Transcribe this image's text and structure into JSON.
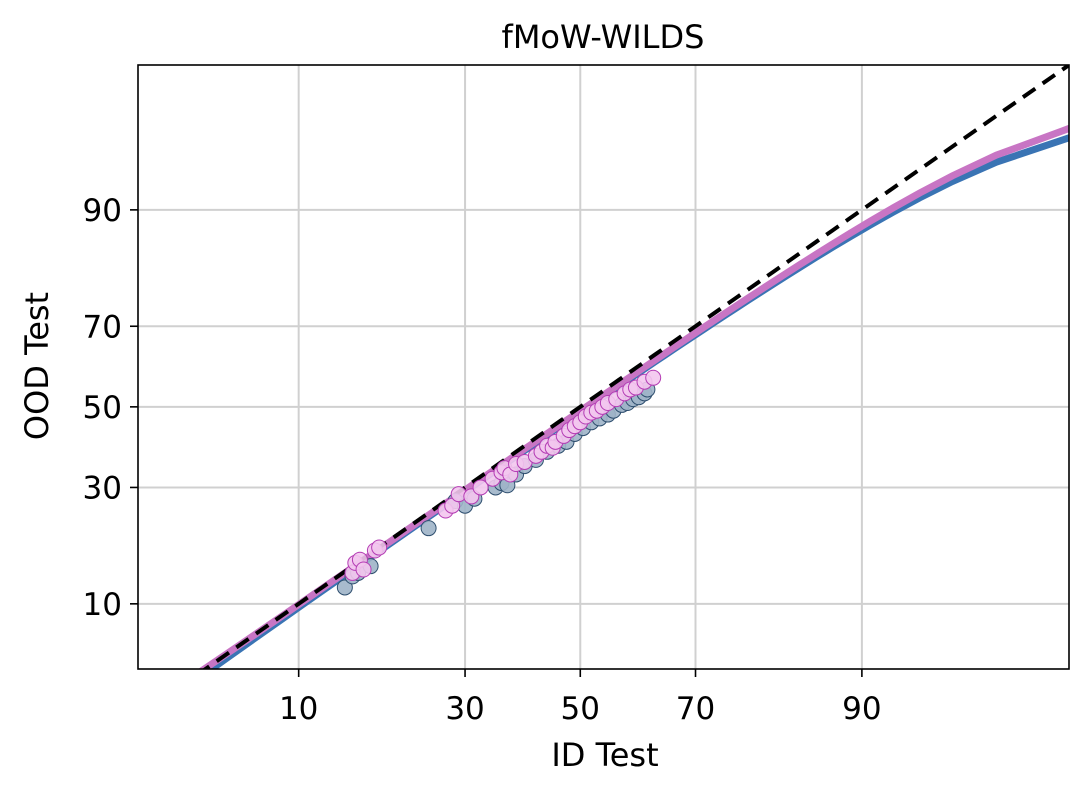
{
  "chart_data": {
    "type": "scatter",
    "title": "fMoW-WILDS",
    "xlabel": "ID Test",
    "ylabel": "OOD Test",
    "x_ticks": [
      "10",
      "30",
      "50",
      "70",
      "90"
    ],
    "y_ticks": [
      "10",
      "30",
      "50",
      "70",
      "90"
    ],
    "x_tick_values": [
      10,
      30,
      50,
      70,
      90
    ],
    "y_tick_values": [
      10,
      30,
      50,
      70,
      90
    ],
    "scale": "probit",
    "xlim": [
      2.2,
      98.7
    ],
    "ylim": [
      4.4,
      98.7
    ],
    "grid": true,
    "colors": {
      "series_a_fill": "#9fb4c8",
      "series_a_edge": "#2f4f6f",
      "series_a_line": "#3a74b4",
      "series_b_fill": "#f3c6ee",
      "series_b_edge": "#b43cb4",
      "series_b_line": "#c875c4",
      "reference_line": "#000000",
      "grid": "#d0d0d0"
    },
    "series": [
      {
        "kind": "scatter",
        "x": [
          14.2,
          15.0,
          15.6,
          17.0,
          24.5,
          28.5,
          30.0,
          31.5,
          35.0,
          36.0,
          37.0,
          38.5,
          40.0,
          42.0,
          44.0,
          46.0,
          47.5,
          49.0,
          50.5,
          52.0,
          53.5,
          55.0,
          56.0,
          57.5,
          58.5,
          59.5,
          60.5,
          61.5,
          62.0
        ],
        "y": [
          12.0,
          13.5,
          14.0,
          15.0,
          21.5,
          27.0,
          26.0,
          27.5,
          30.0,
          31.0,
          30.5,
          33.0,
          35.0,
          36.5,
          38.5,
          40.0,
          41.0,
          43.0,
          44.5,
          46.0,
          47.0,
          48.0,
          49.0,
          50.5,
          51.0,
          52.0,
          52.5,
          53.5,
          54.5
        ]
      },
      {
        "kind": "scatter",
        "x": [
          15.0,
          15.3,
          15.8,
          16.2,
          17.5,
          18.0,
          27.0,
          28.0,
          29.0,
          31.0,
          32.5,
          34.5,
          36.0,
          36.5,
          37.5,
          38.5,
          40.0,
          42.0,
          43.0,
          44.0,
          45.0,
          45.5,
          47.0,
          48.0,
          49.0,
          50.0,
          51.0,
          52.0,
          53.0,
          54.0,
          55.0,
          56.5,
          58.0,
          59.0,
          60.0,
          61.5,
          63.0
        ],
        "y": [
          14.0,
          15.5,
          16.0,
          14.5,
          17.5,
          18.0,
          25.0,
          26.0,
          28.5,
          28.0,
          30.0,
          32.0,
          33.5,
          34.5,
          33.0,
          35.5,
          36.0,
          37.5,
          38.5,
          40.0,
          39.5,
          41.0,
          42.5,
          44.0,
          45.0,
          46.0,
          47.5,
          48.5,
          49.0,
          50.0,
          51.0,
          52.0,
          53.5,
          54.5,
          55.0,
          56.5,
          57.5
        ]
      }
    ],
    "fit_lines": [
      {
        "name": "",
        "x": [
          2.2,
          98.7
        ],
        "y": [
          2.0,
          96.0
        ]
      },
      {
        "name": "",
        "x": [
          2.2,
          98.7
        ],
        "y": [
          2.3,
          96.5
        ]
      }
    ],
    "reference_line": {
      "x": [
        2.2,
        98.7
      ],
      "y": [
        2.2,
        98.7
      ]
    }
  }
}
